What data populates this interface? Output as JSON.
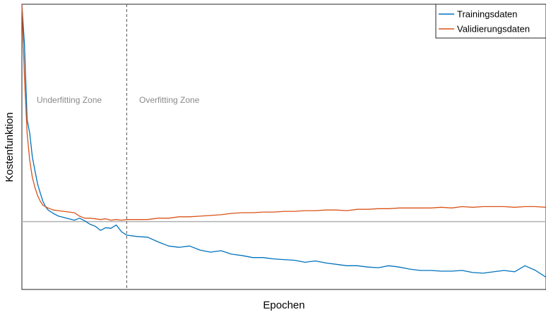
{
  "chart_data": {
    "type": "line",
    "title": "",
    "xlabel": "Epochen",
    "ylabel": "Kostenfunktion",
    "xlim": [
      0,
      100
    ],
    "ylim": [
      -1,
      3.2
    ],
    "grid": false,
    "legend_position": "top-right",
    "reference_line_y": 0,
    "divider_x": 20,
    "zones": [
      {
        "label": "Underfitting Zone"
      },
      {
        "label": "Overfitting Zone"
      }
    ],
    "series": [
      {
        "name": "Trainingsdaten",
        "color": "#0072bd",
        "x": [
          0,
          0.5,
          1,
          1.5,
          2,
          2.5,
          3,
          3.5,
          4,
          4.5,
          5,
          6,
          7,
          8,
          9,
          10,
          11,
          12,
          13,
          14,
          15,
          16,
          17,
          18,
          19,
          20,
          22,
          24,
          26,
          28,
          30,
          32,
          34,
          36,
          38,
          40,
          42,
          44,
          46,
          48,
          50,
          52,
          54,
          56,
          58,
          60,
          62,
          64,
          66,
          68,
          70,
          72,
          74,
          76,
          78,
          80,
          82,
          84,
          86,
          88,
          90,
          92,
          94,
          96,
          98,
          100
        ],
        "y": [
          3.2,
          2.6,
          1.5,
          1.3,
          0.95,
          0.75,
          0.55,
          0.42,
          0.3,
          0.22,
          0.17,
          0.12,
          0.08,
          0.06,
          0.04,
          0.02,
          0.05,
          0.01,
          -0.04,
          -0.07,
          -0.13,
          -0.09,
          -0.1,
          -0.05,
          -0.15,
          -0.2,
          -0.22,
          -0.23,
          -0.3,
          -0.36,
          -0.38,
          -0.36,
          -0.42,
          -0.45,
          -0.43,
          -0.48,
          -0.5,
          -0.53,
          -0.53,
          -0.55,
          -0.56,
          -0.57,
          -0.6,
          -0.58,
          -0.61,
          -0.63,
          -0.65,
          -0.65,
          -0.67,
          -0.68,
          -0.65,
          -0.67,
          -0.7,
          -0.72,
          -0.72,
          -0.73,
          -0.73,
          -0.72,
          -0.75,
          -0.76,
          -0.74,
          -0.72,
          -0.74,
          -0.65,
          -0.72,
          -0.82
        ]
      },
      {
        "name": "Validierungsdaten",
        "color": "#d95319",
        "x": [
          0,
          0.5,
          1,
          1.5,
          2,
          2.5,
          3,
          3.5,
          4,
          4.5,
          5,
          6,
          7,
          8,
          9,
          10,
          11,
          12,
          13,
          14,
          15,
          16,
          17,
          18,
          19,
          20,
          22,
          24,
          26,
          28,
          30,
          32,
          34,
          36,
          38,
          40,
          42,
          44,
          46,
          48,
          50,
          52,
          54,
          56,
          58,
          60,
          62,
          64,
          66,
          68,
          70,
          72,
          74,
          76,
          78,
          80,
          82,
          84,
          86,
          88,
          90,
          92,
          94,
          96,
          98,
          100
        ],
        "y": [
          3.2,
          2.1,
          1.3,
          0.9,
          0.65,
          0.5,
          0.38,
          0.3,
          0.24,
          0.22,
          0.2,
          0.17,
          0.16,
          0.15,
          0.14,
          0.13,
          0.08,
          0.05,
          0.05,
          0.04,
          0.03,
          0.04,
          0.02,
          0.03,
          0.02,
          0.03,
          0.03,
          0.03,
          0.05,
          0.05,
          0.07,
          0.07,
          0.08,
          0.09,
          0.1,
          0.12,
          0.13,
          0.13,
          0.14,
          0.14,
          0.15,
          0.15,
          0.16,
          0.16,
          0.17,
          0.17,
          0.16,
          0.18,
          0.18,
          0.19,
          0.19,
          0.2,
          0.2,
          0.2,
          0.2,
          0.21,
          0.2,
          0.22,
          0.21,
          0.22,
          0.22,
          0.22,
          0.21,
          0.22,
          0.22,
          0.21
        ]
      }
    ]
  }
}
